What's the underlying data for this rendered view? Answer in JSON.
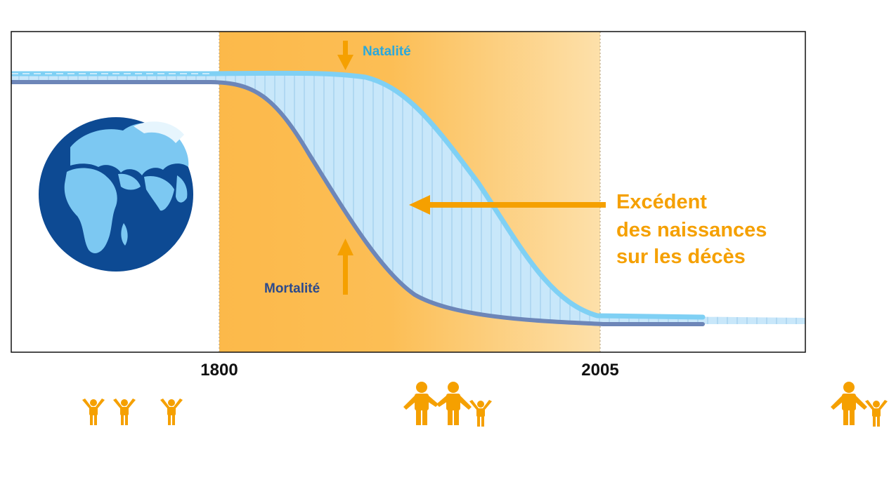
{
  "labels": {
    "natalite": "Natalité",
    "mortalite": "Mortalité",
    "excedent_line1": "Excédent",
    "excedent_line2": "des naissances",
    "excedent_line3": "sur les décès"
  },
  "axis": {
    "tick_start": "1800",
    "tick_end": "2005"
  },
  "icons": {
    "globe": "earth-globe-icon",
    "family_small": "family-small-children-icon",
    "family_large": "family-adults-child-icon",
    "family_end": "family-adult-child-icon"
  },
  "colors": {
    "transition_band": "#fcb94a",
    "birth_curve": "#7fd0f4",
    "death_curve": "#6d86b8",
    "fill_between": "#c8e7fa",
    "accent": "#f5a000",
    "natalite_text": "#2aa8dc",
    "mortalite_text": "#2c4a8c",
    "globe_ocean": "#0d4a93",
    "globe_land": "#7cc8f2"
  }
}
